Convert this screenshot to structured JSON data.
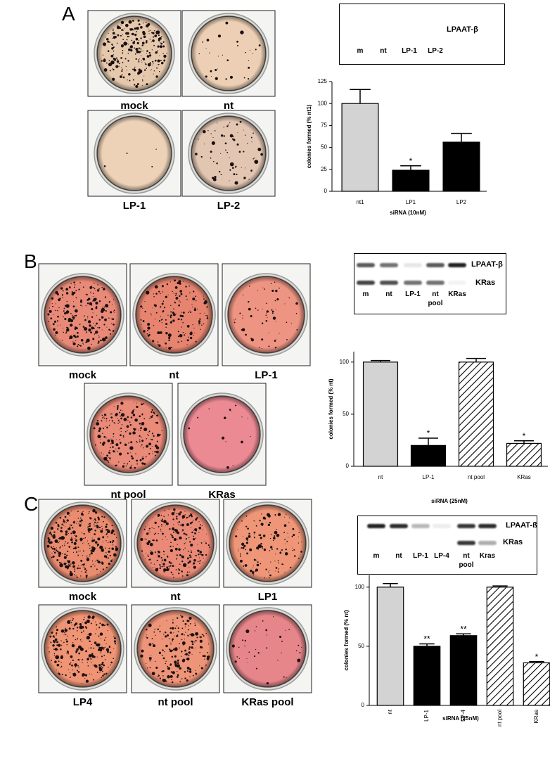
{
  "panels": [
    {
      "label": "A",
      "plates": [
        "mock",
        "nt",
        "LP-1",
        "LP-2"
      ],
      "blot": {
        "proteins": [
          "LPAAT-β"
        ],
        "lanes": [
          "m",
          "nt",
          "LP-1",
          "LP-2"
        ]
      }
    },
    {
      "label": "B",
      "plates": [
        "mock",
        "nt",
        "LP-1",
        "nt pool",
        "KRas"
      ],
      "blot": {
        "proteins": [
          "LPAAT-β",
          "KRas"
        ],
        "lanes": [
          "m",
          "nt",
          "LP-1",
          "nt pool",
          "KRas"
        ]
      }
    },
    {
      "label": "C",
      "plates": [
        "mock",
        "nt",
        "LP1",
        "LP4",
        "nt pool",
        "KRas pool"
      ],
      "blot": {
        "proteins": [
          "LPAAT-ß",
          "KRas"
        ],
        "lanes": [
          "m",
          "nt",
          "LP-1",
          "LP-4",
          "nt pool",
          "Kras"
        ]
      }
    }
  ],
  "chart_data": [
    {
      "type": "bar",
      "y_label": "colonies formed (% nt1)",
      "x_label": "siRNA (10nM)",
      "categories": [
        "nt1",
        "LP1",
        "LP2"
      ],
      "values": [
        100,
        24,
        56
      ],
      "errors": [
        16,
        5,
        10
      ],
      "annotations": [
        null,
        "*",
        null
      ],
      "colors": [
        "#d3d3d3",
        "#000000",
        "#000000"
      ],
      "hatch": [
        false,
        false,
        false
      ],
      "ylim": [
        0,
        125
      ],
      "yticks": [
        0,
        25,
        50,
        75,
        100,
        125
      ]
    },
    {
      "type": "bar",
      "y_label": "colonies formed (% nt)",
      "x_label": "siRNA (25nM)",
      "categories": [
        "nt",
        "LP-1",
        "nt pool",
        "KRas"
      ],
      "values": [
        100,
        20,
        100,
        22
      ],
      "errors": [
        1.5,
        7,
        3.5,
        2.5
      ],
      "annotations": [
        null,
        "*",
        null,
        "*"
      ],
      "colors": [
        "#d3d3d3",
        "#000000",
        "#ffffff",
        "#ffffff"
      ],
      "hatch": [
        false,
        false,
        true,
        true
      ],
      "ylim": [
        0,
        110
      ],
      "yticks": [
        0,
        50,
        100
      ]
    },
    {
      "type": "bar",
      "y_label": "colonies formed (% nt)",
      "x_label": "siRNA (25nM)",
      "rotate_labels": true,
      "categories": [
        "nt",
        "LP-1",
        "LP-4",
        "nt pool",
        "KRas"
      ],
      "values": [
        100,
        50,
        59,
        100,
        36
      ],
      "errors": [
        3,
        2,
        1.5,
        1,
        1
      ],
      "annotations": [
        null,
        "**",
        "**",
        null,
        "*"
      ],
      "colors": [
        "#d3d3d3",
        "#000000",
        "#000000",
        "#ffffff",
        "#ffffff"
      ],
      "hatch": [
        false,
        false,
        false,
        true,
        true
      ],
      "ylim": [
        0,
        110
      ],
      "yticks": [
        0,
        50,
        100
      ]
    }
  ]
}
